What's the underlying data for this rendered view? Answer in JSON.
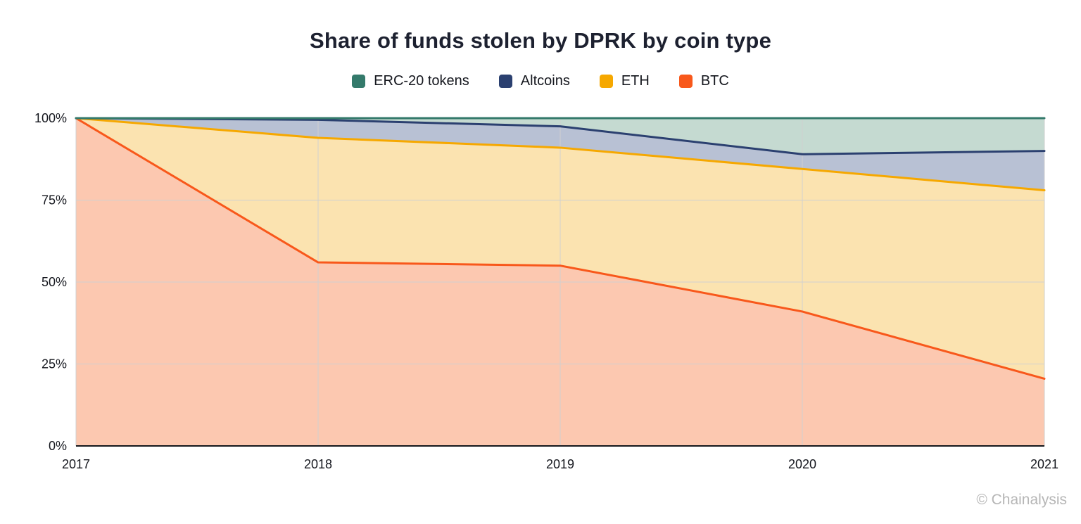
{
  "title": "Share of funds stolen by DPRK by coin type",
  "watermark": "© Chainalysis",
  "chart_data": {
    "type": "area",
    "stacked": true,
    "title": "Share of funds stolen by DPRK by coin type",
    "xlabel": "",
    "ylabel": "",
    "x": [
      2017,
      2018,
      2019,
      2020,
      2021
    ],
    "x_ticks": [
      "2017",
      "2018",
      "2019",
      "2020",
      "2021"
    ],
    "y_ticks": [
      "0%",
      "25%",
      "50%",
      "75%",
      "100%"
    ],
    "y_tick_values": [
      0,
      25,
      50,
      75,
      100
    ],
    "ylim": [
      0,
      100
    ],
    "grid": true,
    "legend_position": "top",
    "series": [
      {
        "name": "BTC",
        "values": [
          100,
          56,
          55,
          41,
          20.5
        ],
        "line_color": "#f8581b",
        "fill_color": "#fcc8b0"
      },
      {
        "name": "ETH",
        "values": [
          0,
          38,
          36,
          43.5,
          57.5
        ],
        "line_color": "#f6a800",
        "fill_color": "#fbe3b0"
      },
      {
        "name": "Altcoins",
        "values": [
          0,
          5.5,
          6.5,
          4.5,
          12
        ],
        "line_color": "#2b4070",
        "fill_color": "#b8c1d4"
      },
      {
        "name": "ERC-20 tokens",
        "values": [
          0,
          0.5,
          2.5,
          11,
          10
        ],
        "line_color": "#347a6b",
        "fill_color": "#c5dad1"
      }
    ],
    "legend": [
      {
        "label": "ERC-20 tokens",
        "color": "#347a6b"
      },
      {
        "label": "Altcoins",
        "color": "#2b4070"
      },
      {
        "label": "ETH",
        "color": "#f6a800"
      },
      {
        "label": "BTC",
        "color": "#f8581b"
      }
    ],
    "grid_color": "#d0d0d0",
    "axis_color": "#15171c"
  }
}
